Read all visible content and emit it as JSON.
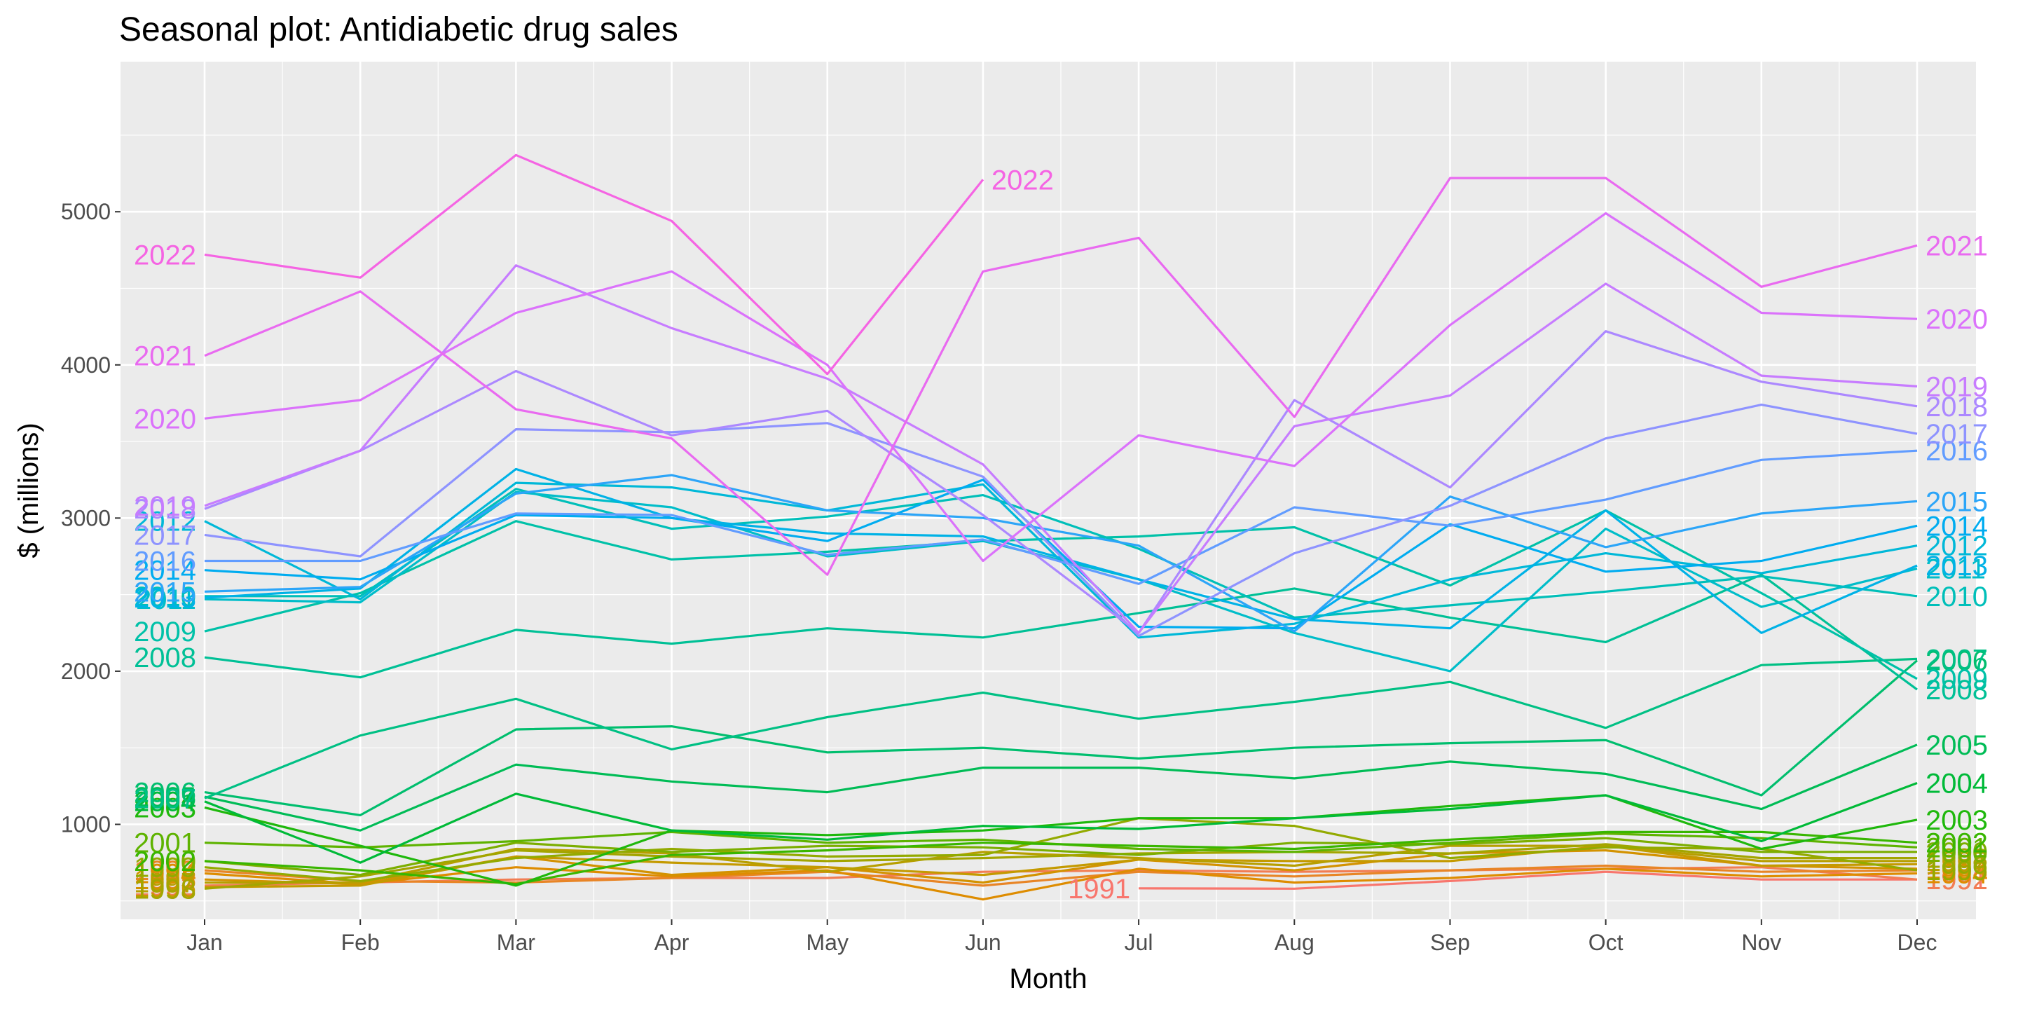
{
  "chart_data": {
    "type": "line",
    "title": "Seasonal plot: Antidiabetic drug sales",
    "xlabel": "Month",
    "ylabel": "$ (millions)",
    "ylim": [
      380,
      5980
    ],
    "yticks": [
      1000,
      2000,
      3000,
      4000,
      5000
    ],
    "grid": true,
    "legend": "none",
    "categories": [
      "Jan",
      "Feb",
      "Mar",
      "Apr",
      "May",
      "Jun",
      "Jul",
      "Aug",
      "Sep",
      "Oct",
      "Nov",
      "Dec"
    ],
    "series": [
      {
        "name": "1991",
        "color": "#F8766D",
        "start_month": 7,
        "values": [
          null,
          null,
          null,
          null,
          null,
          null,
          582,
          580,
          630,
          690,
          640,
          640
        ]
      },
      {
        "name": "1992",
        "color": "#F27D53",
        "values": [
          600,
          620,
          640,
          650,
          650,
          690,
          700,
          690,
          700,
          710,
          720,
          640
        ]
      },
      {
        "name": "1993",
        "color": "#E88526",
        "values": [
          700,
          630,
          620,
          650,
          690,
          600,
          690,
          660,
          700,
          730,
          690,
          700
        ]
      },
      {
        "name": "1994",
        "color": "#DE8C00",
        "values": [
          680,
          610,
          720,
          660,
          700,
          510,
          710,
          620,
          650,
          710,
          660,
          680
        ]
      },
      {
        "name": "1995",
        "color": "#D39200",
        "values": [
          640,
          610,
          790,
          670,
          720,
          620,
          770,
          700,
          810,
          830,
          730,
          710
        ]
      },
      {
        "name": "1996",
        "color": "#C49A00",
        "values": [
          590,
          600,
          790,
          750,
          720,
          670,
          770,
          760,
          760,
          860,
          730,
          740
        ]
      },
      {
        "name": "1997",
        "color": "#B79F00",
        "values": [
          620,
          620,
          840,
          810,
          690,
          820,
          780,
          730,
          860,
          860,
          760,
          760
        ]
      },
      {
        "name": "1998",
        "color": "#A3A500",
        "values": [
          580,
          660,
          830,
          790,
          760,
          780,
          810,
          820,
          810,
          870,
          780,
          780
        ]
      },
      {
        "name": "1999",
        "color": "#93AA00",
        "values": [
          720,
          630,
          780,
          840,
          790,
          800,
          1040,
          990,
          780,
          850,
          840,
          700
        ]
      },
      {
        "name": "2000",
        "color": "#7CAE00",
        "values": [
          760,
          670,
          880,
          820,
          860,
          850,
          800,
          880,
          870,
          910,
          820,
          820
        ]
      },
      {
        "name": "2001",
        "color": "#5EB300",
        "values": [
          880,
          850,
          890,
          950,
          880,
          900,
          840,
          820,
          880,
          940,
          910,
          850
        ]
      },
      {
        "name": "2002",
        "color": "#39B600",
        "values": [
          760,
          700,
          610,
          800,
          830,
          880,
          860,
          840,
          900,
          950,
          950,
          880
        ]
      },
      {
        "name": "2003",
        "color": "#1FB80C",
        "values": [
          1110,
          860,
          600,
          960,
          930,
          960,
          1040,
          1040,
          1120,
          1190,
          840,
          1030
        ]
      },
      {
        "name": "2004",
        "color": "#00BA38",
        "values": [
          1150,
          750,
          1200,
          960,
          900,
          990,
          970,
          1040,
          1100,
          1190,
          890,
          1270
        ]
      },
      {
        "name": "2005",
        "color": "#00BC56",
        "values": [
          1180,
          960,
          1390,
          1280,
          1210,
          1370,
          1370,
          1300,
          1410,
          1330,
          1100,
          1520
        ]
      },
      {
        "name": "2006",
        "color": "#00BE6E",
        "values": [
          1210,
          1060,
          1620,
          1640,
          1470,
          1500,
          1430,
          1500,
          1530,
          1550,
          1190,
          2070
        ]
      },
      {
        "name": "2007",
        "color": "#00C084",
        "values": [
          1170,
          1580,
          1820,
          1490,
          1700,
          1860,
          1690,
          1800,
          1930,
          1630,
          2040,
          2080
        ]
      },
      {
        "name": "2008",
        "color": "#00C096",
        "values": [
          2090,
          1960,
          2270,
          2180,
          2280,
          2220,
          2380,
          2540,
          2350,
          2190,
          2630,
          1880
        ]
      },
      {
        "name": "2009",
        "color": "#00C1A8",
        "values": [
          2260,
          2510,
          2980,
          2730,
          2780,
          2850,
          2880,
          2940,
          2560,
          3050,
          2510,
          1950
        ]
      },
      {
        "name": "2010",
        "color": "#00BFB9",
        "values": [
          2490,
          2490,
          3190,
          2930,
          3010,
          3150,
          2800,
          2350,
          2430,
          2520,
          2620,
          2490
        ]
      },
      {
        "name": "2011",
        "color": "#00BDC9",
        "values": [
          2470,
          2450,
          3170,
          3070,
          2750,
          2850,
          2600,
          2250,
          2000,
          2930,
          2420,
          2670
        ]
      },
      {
        "name": "2012",
        "color": "#00B8D8",
        "values": [
          2980,
          2470,
          3230,
          3200,
          3050,
          3220,
          2220,
          2310,
          2600,
          2770,
          2640,
          2820
        ]
      },
      {
        "name": "2013",
        "color": "#00B2E6",
        "values": [
          2480,
          2540,
          3320,
          3000,
          2900,
          2880,
          2600,
          2340,
          2280,
          3050,
          2250,
          2690
        ]
      },
      {
        "name": "2014",
        "color": "#00ACF0",
        "values": [
          2660,
          2600,
          3020,
          3000,
          2850,
          3250,
          2290,
          2280,
          2960,
          2650,
          2720,
          2950
        ]
      },
      {
        "name": "2015",
        "color": "#2CA5F8",
        "values": [
          2520,
          2550,
          3160,
          3280,
          3050,
          3000,
          2820,
          2260,
          3140,
          2810,
          3030,
          3110
        ]
      },
      {
        "name": "2016",
        "color": "#619CFF",
        "values": [
          2720,
          2720,
          3030,
          3020,
          2760,
          2860,
          2570,
          3070,
          2950,
          3120,
          3380,
          3440
        ]
      },
      {
        "name": "2017",
        "color": "#8E93FF",
        "values": [
          2890,
          2750,
          3580,
          3560,
          3620,
          3270,
          2230,
          2770,
          3080,
          3520,
          3740,
          3550
        ]
      },
      {
        "name": "2018",
        "color": "#AC88FF",
        "values": [
          3060,
          3440,
          3960,
          3540,
          3700,
          3020,
          2250,
          3770,
          3200,
          4220,
          3890,
          3730
        ]
      },
      {
        "name": "2019",
        "color": "#C77CFF",
        "values": [
          3080,
          3440,
          4650,
          4240,
          3910,
          3350,
          2250,
          3600,
          3800,
          4530,
          3930,
          3860
        ]
      },
      {
        "name": "2020",
        "color": "#DB72FB",
        "values": [
          3650,
          3770,
          4340,
          4610,
          4000,
          2720,
          3540,
          3340,
          4260,
          4990,
          4340,
          4300
        ]
      },
      {
        "name": "2021",
        "color": "#E96AF0",
        "values": [
          4060,
          4480,
          3710,
          3520,
          2630,
          4610,
          4830,
          3660,
          5220,
          5220,
          4510,
          4780
        ]
      },
      {
        "name": "2022",
        "color": "#F564E3",
        "end_month": 6,
        "values": [
          4720,
          4570,
          5370,
          4940,
          3940,
          5210,
          null,
          null,
          null,
          null,
          null,
          null
        ]
      }
    ]
  }
}
